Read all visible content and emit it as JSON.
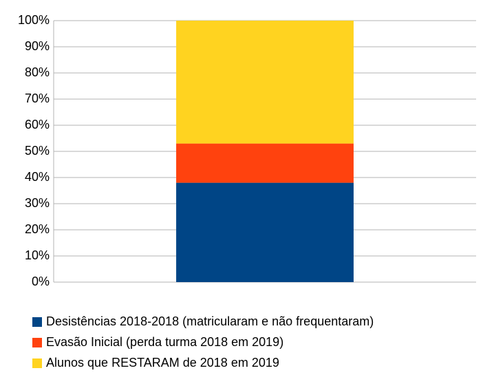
{
  "chart_data": {
    "type": "stacked_bar",
    "categories": [
      null
    ],
    "series": [
      {
        "name": "Desistências 2018-2018 (matricularam e não frequentaram)",
        "color": "#004586",
        "values": [
          38
        ]
      },
      {
        "name": "Evasão Inicial (perda turma 2018 em 2019)",
        "color": "#ff420e",
        "values": [
          15
        ]
      },
      {
        "name": "Alunos que RESTARAM de 2018 em 2019",
        "color": "#ffd320",
        "values": [
          47
        ]
      }
    ],
    "ylim": [
      0,
      100
    ],
    "yticks": [
      {
        "value": 0,
        "label": "0%"
      },
      {
        "value": 10,
        "label": "10%"
      },
      {
        "value": 20,
        "label": "20%"
      },
      {
        "value": 30,
        "label": "30%"
      },
      {
        "value": 40,
        "label": "40%"
      },
      {
        "value": 50,
        "label": "50%"
      },
      {
        "value": 60,
        "label": "60%"
      },
      {
        "value": 70,
        "label": "70%"
      },
      {
        "value": 80,
        "label": "80%"
      },
      {
        "value": 90,
        "label": "90%"
      },
      {
        "value": 100,
        "label": "100%"
      }
    ],
    "grid": true,
    "legend": "bottom"
  }
}
